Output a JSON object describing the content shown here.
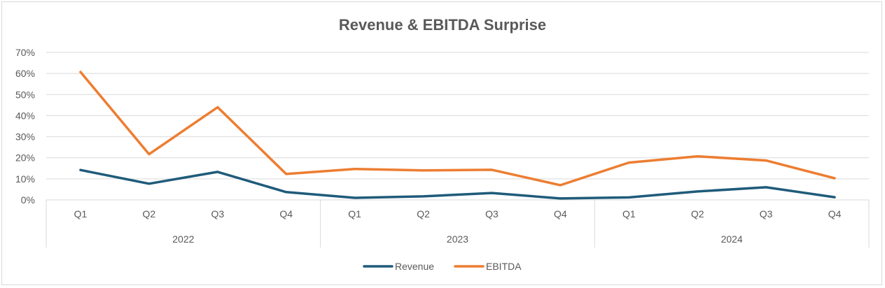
{
  "chart_data": {
    "type": "line",
    "title": "Revenue & EBITDA Surprise",
    "xlabel": "",
    "ylabel": "",
    "ylim": [
      0,
      0.7
    ],
    "y_ticks": [
      "0%",
      "10%",
      "20%",
      "30%",
      "40%",
      "50%",
      "60%",
      "70%"
    ],
    "y_tick_values": [
      0,
      0.1,
      0.2,
      0.3,
      0.4,
      0.5,
      0.6,
      0.7
    ],
    "grid": true,
    "legend_position": "bottom",
    "categories": [
      "Q1",
      "Q2",
      "Q3",
      "Q4",
      "Q1",
      "Q2",
      "Q3",
      "Q4",
      "Q1",
      "Q2",
      "Q3",
      "Q4"
    ],
    "groups": [
      {
        "label": "2022",
        "count": 4
      },
      {
        "label": "2023",
        "count": 4
      },
      {
        "label": "2024",
        "count": 4
      }
    ],
    "series": [
      {
        "name": "Revenue",
        "color": "#1f5b7a",
        "values": [
          0.142,
          0.077,
          0.133,
          0.037,
          0.01,
          0.017,
          0.033,
          0.007,
          0.012,
          0.04,
          0.06,
          0.013
        ]
      },
      {
        "name": "EBITDA",
        "color": "#ed7d31",
        "values": [
          0.607,
          0.217,
          0.44,
          0.123,
          0.147,
          0.14,
          0.143,
          0.07,
          0.177,
          0.207,
          0.187,
          0.103
        ]
      }
    ]
  }
}
